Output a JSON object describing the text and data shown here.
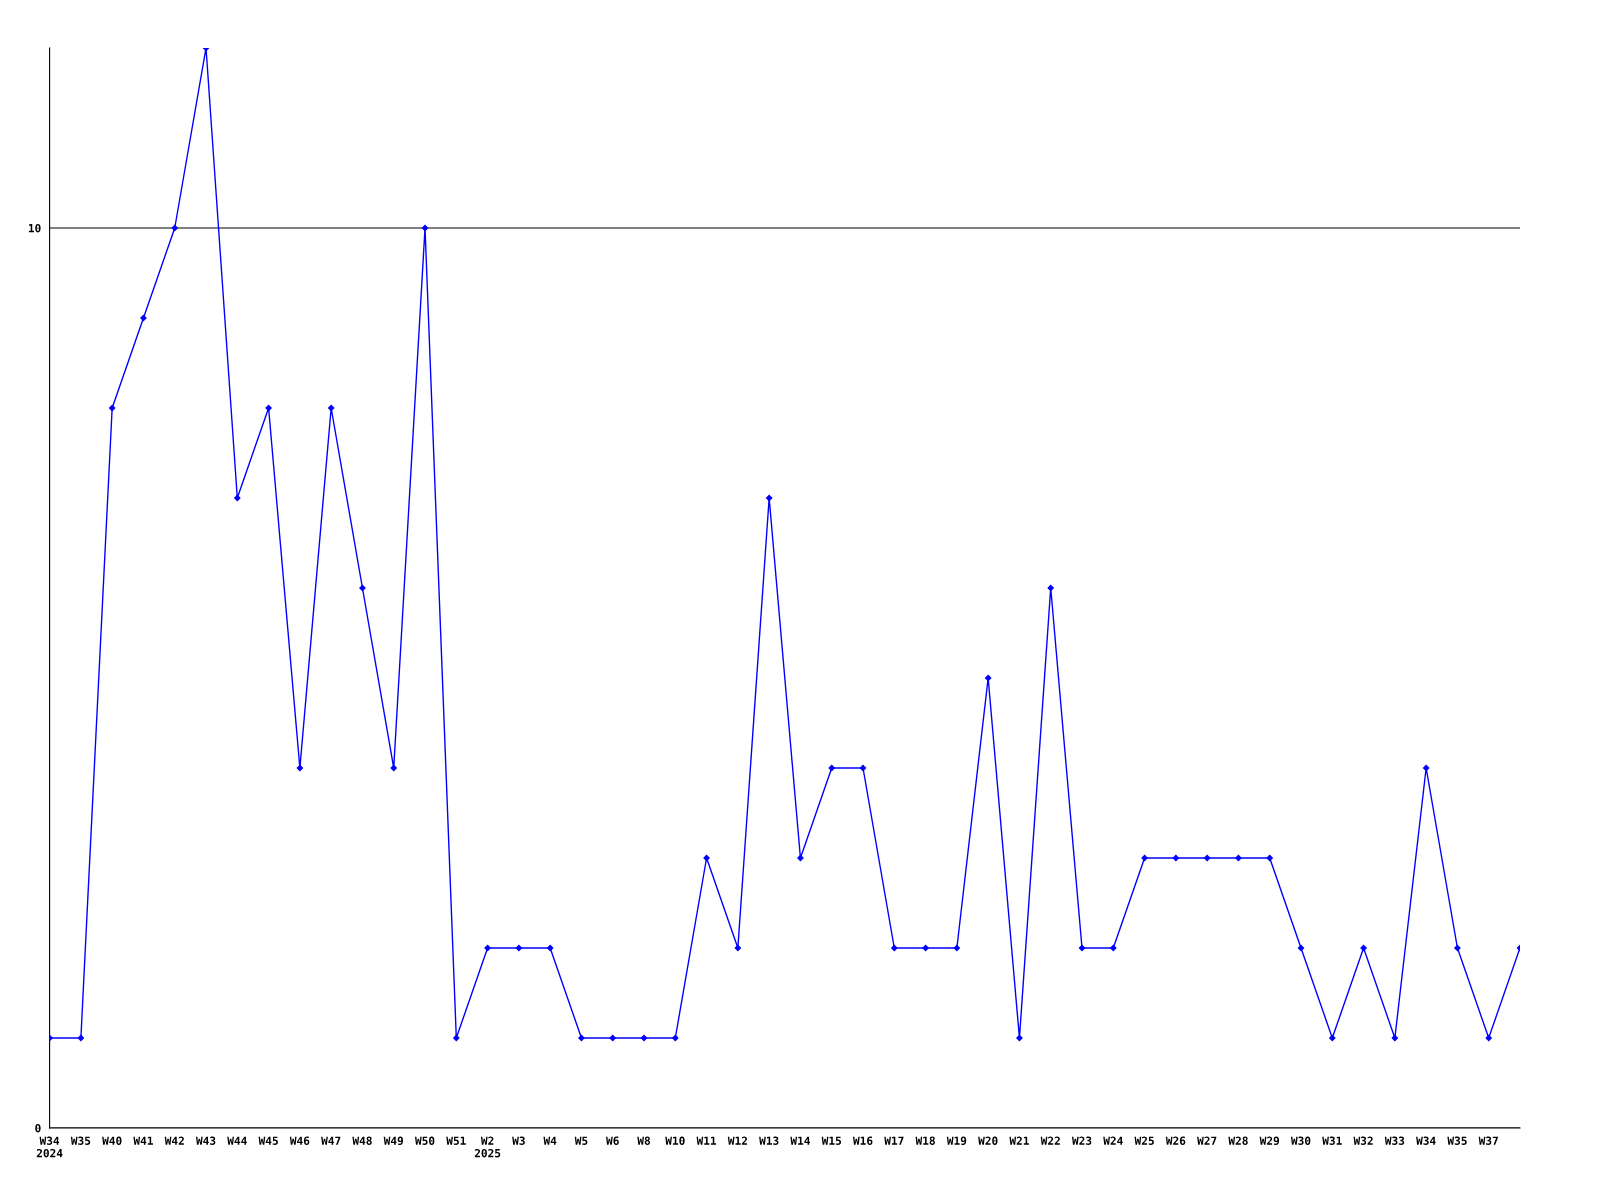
{
  "chart_data": {
    "type": "line",
    "categories": [
      "W34\n2024",
      "W35",
      "W40",
      "W41",
      "W42",
      "W43",
      "W44",
      "W45",
      "W46",
      "W47",
      "W48",
      "W49",
      "W50",
      "W51",
      "W2\n2025",
      "W3",
      "W4",
      "W5",
      "W6",
      "W8",
      "W10",
      "W11",
      "W12",
      "W13",
      "W14",
      "W15",
      "W16",
      "W17",
      "W18",
      "W19",
      "W20",
      "W21",
      "W22",
      "W23",
      "W24",
      "W25",
      "W26",
      "W27",
      "W28",
      "W29",
      "W30",
      "W31",
      "W32",
      "W33",
      "W34",
      "W35",
      "W37",
      null
    ],
    "series": [
      {
        "color": "#0000ff",
        "values": [
          1,
          1,
          8,
          9,
          10,
          12,
          7,
          8,
          4,
          8,
          6,
          4,
          10,
          1,
          2,
          2,
          2,
          1,
          1,
          1,
          1,
          3,
          2,
          7,
          3,
          4,
          4,
          2,
          2,
          2,
          5,
          1,
          6,
          2,
          2,
          3,
          3,
          3,
          3,
          3,
          2,
          1,
          2,
          1,
          4,
          2,
          1,
          2
        ]
      }
    ],
    "ylim": [
      0,
      12
    ],
    "yticks": [
      0,
      10
    ],
    "grid": "y",
    "marker": "diamond",
    "line_style": "solid",
    "legend": false
  }
}
